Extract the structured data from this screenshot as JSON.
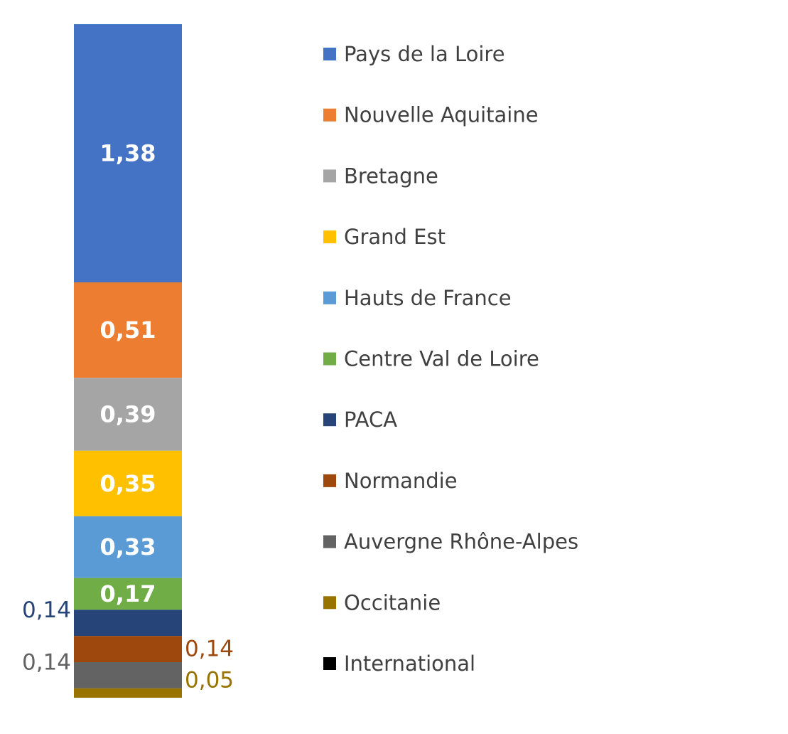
{
  "chart_data": {
    "type": "bar",
    "stacked": true,
    "title": "",
    "xlabel": "",
    "ylabel": "",
    "legend_position": "right",
    "grid": false,
    "categories": [
      ""
    ],
    "series": [
      {
        "name": "Pays de la Loire",
        "value": 1.38,
        "label": "1,38",
        "color": "#4472C4"
      },
      {
        "name": "Nouvelle Aquitaine",
        "value": 0.51,
        "label": "0,51",
        "color": "#ED7D31"
      },
      {
        "name": "Bretagne",
        "value": 0.39,
        "label": "0,39",
        "color": "#A5A5A5"
      },
      {
        "name": "Grand Est",
        "value": 0.35,
        "label": "0,35",
        "color": "#FFC000"
      },
      {
        "name": "Hauts de France",
        "value": 0.33,
        "label": "0,33",
        "color": "#5B9BD5"
      },
      {
        "name": "Centre Val de Loire",
        "value": 0.17,
        "label": "0,17",
        "color": "#70AD47"
      },
      {
        "name": "PACA",
        "value": 0.14,
        "label": "0,14",
        "color": "#264478"
      },
      {
        "name": "Normandie",
        "value": 0.14,
        "label": "0,14",
        "color": "#9E480E"
      },
      {
        "name": "Auvergne Rhône-Alpes",
        "value": 0.14,
        "label": "0,14",
        "color": "#636363"
      },
      {
        "name": "Occitanie",
        "value": 0.05,
        "label": "0,05",
        "color": "#997300"
      },
      {
        "name": "International",
        "value": 0.0,
        "label": "",
        "color": "#000000"
      }
    ]
  }
}
